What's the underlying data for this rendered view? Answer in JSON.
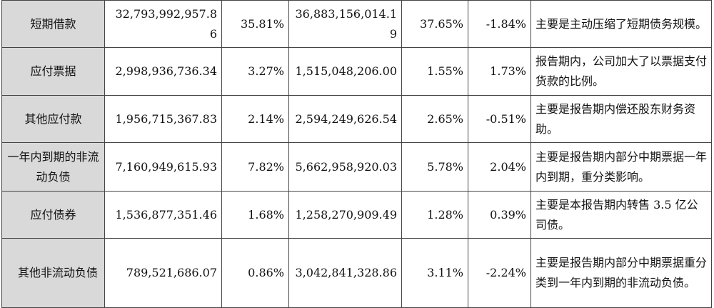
{
  "rows": [
    {
      "item": "短期借款",
      "current_amount": "32,793,992,957.86",
      "current_ratio": "35.81%",
      "prior_amount": "36,883,156,014.19",
      "prior_ratio": "37.65%",
      "change": "-1.84%",
      "explanation": "主要是主动压缩了短期债务规模。"
    },
    {
      "item": "应付票据",
      "current_amount": "2,998,936,736.34",
      "current_ratio": "3.27%",
      "prior_amount": "1,515,048,206.00",
      "prior_ratio": "1.55%",
      "change": "1.73%",
      "explanation": "报告期内，公司加大了以票据支付货款的比例。"
    },
    {
      "item": "其他应付款",
      "current_amount": "1,956,715,367.83",
      "current_ratio": "2.14%",
      "prior_amount": "2,594,249,626.54",
      "prior_ratio": "2.65%",
      "change": "-0.51%",
      "explanation": "主要是报告期内偿还股东财务资助。"
    },
    {
      "item": "一年内到期的非流动负债",
      "current_amount": "7,160,949,615.93",
      "current_ratio": "7.82%",
      "prior_amount": "5,662,958,920.03",
      "prior_ratio": "5.78%",
      "change": "2.04%",
      "explanation": "主要是报告期内部分中期票据一年内到期，重分类影响。"
    },
    {
      "item": "应付债券",
      "current_amount": "1,536,877,351.46",
      "current_ratio": "1.68%",
      "prior_amount": "1,258,270,909.49",
      "prior_ratio": "1.28%",
      "change": "0.39%",
      "explanation": "主要是本报告期内转售 3.5 亿公司债。"
    },
    {
      "item": "其他非流动负债",
      "current_amount": "789,521,686.07",
      "current_ratio": "0.86%",
      "prior_amount": "3,042,841,328.86",
      "prior_ratio": "3.11%",
      "change": "-2.24%",
      "explanation": "主要是报告期内部分中期票据重分类到一年内到期的非流动负债。"
    }
  ]
}
